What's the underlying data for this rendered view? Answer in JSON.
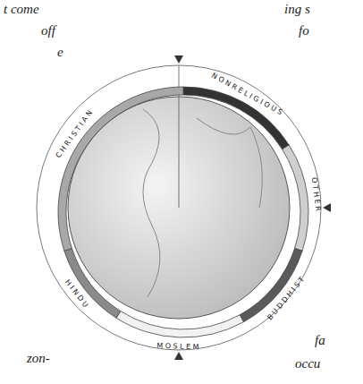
{
  "chart_data": {
    "type": "pie",
    "categories": [
      "NONRELIGIOUS",
      "OTHER",
      "BUDDHIST",
      "MOSLEM",
      "HINDU",
      "CHRISTIAN"
    ],
    "values": [
      16,
      14,
      12,
      17,
      11,
      30
    ],
    "colors": [
      "#333333",
      "#cfcfcf",
      "#5a5a5a",
      "#f2f2f2",
      "#8a8a8a",
      "#a8a8a8"
    ],
    "annotations": [
      "t come",
      "off",
      "e",
      "ing s",
      "fo",
      "fa",
      "occu",
      "zon-"
    ]
  }
}
